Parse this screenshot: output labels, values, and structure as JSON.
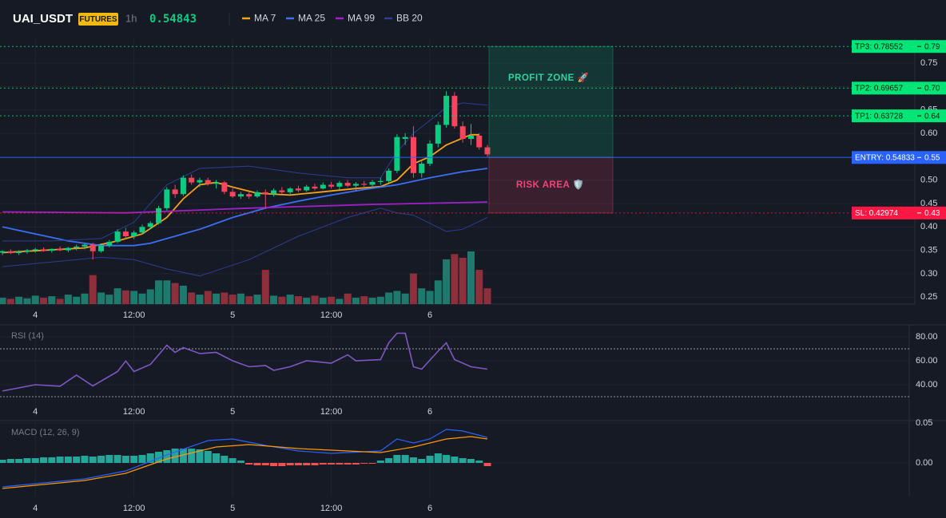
{
  "chart_data": [
    {
      "type": "candlestick",
      "title": "UAI_USDT",
      "badge": "FUTURES",
      "interval": "1h",
      "last_price": 0.54843,
      "xlim": [
        -0.3,
        111
      ],
      "ylim": [
        0.235,
        0.803
      ],
      "xticks": [
        4,
        {
          "value": 16,
          "label": "12:00"
        },
        {
          "value": 28,
          "label": "5"
        },
        {
          "value": 40,
          "label": "12:00"
        },
        {
          "value": 52,
          "label": "6"
        }
      ],
      "yticks": [
        0.25,
        {
          "value": 0.3,
          "label": "0.30"
        },
        0.35,
        {
          "value": 0.4,
          "label": "0.40"
        },
        0.45,
        {
          "value": 0.5,
          "label": "0.50"
        },
        0.55,
        {
          "value": 0.6,
          "label": "0.60"
        },
        0.65,
        {
          "value": 0.7,
          "label": "0.70"
        },
        0.75
      ],
      "up_color": "#0ecb81",
      "down_color": "#f6465d",
      "open": [
        0.345,
        0.348,
        0.344,
        0.347,
        0.35,
        0.352,
        0.349,
        0.353,
        0.35,
        0.355,
        0.358,
        0.362,
        0.348,
        0.36,
        0.368,
        0.39,
        0.38,
        0.388,
        0.4,
        0.408,
        0.44,
        0.48,
        0.47,
        0.505,
        0.495,
        0.5,
        0.492,
        0.495,
        0.475,
        0.465,
        0.47,
        0.465,
        0.474,
        0.47,
        0.478,
        0.474,
        0.482,
        0.478,
        0.486,
        0.482,
        0.49,
        0.486,
        0.494,
        0.488,
        0.492,
        0.49,
        0.496,
        0.498,
        0.52,
        0.588,
        0.592,
        0.515,
        0.535,
        0.578,
        0.618,
        0.68,
        0.615,
        0.588,
        0.595,
        0.57
      ],
      "high": [
        0.35,
        0.352,
        0.35,
        0.353,
        0.355,
        0.356,
        0.354,
        0.358,
        0.357,
        0.362,
        0.365,
        0.366,
        0.362,
        0.372,
        0.395,
        0.398,
        0.392,
        0.405,
        0.412,
        0.445,
        0.485,
        0.49,
        0.51,
        0.512,
        0.505,
        0.505,
        0.5,
        0.498,
        0.482,
        0.475,
        0.474,
        0.478,
        0.48,
        0.482,
        0.485,
        0.485,
        0.488,
        0.49,
        0.492,
        0.495,
        0.496,
        0.498,
        0.5,
        0.496,
        0.498,
        0.5,
        0.505,
        0.525,
        0.598,
        0.6,
        0.615,
        0.54,
        0.585,
        0.625,
        0.69,
        0.688,
        0.625,
        0.62,
        0.6,
        0.575
      ],
      "low": [
        0.34,
        0.342,
        0.34,
        0.343,
        0.345,
        0.347,
        0.345,
        0.348,
        0.346,
        0.35,
        0.352,
        0.33,
        0.345,
        0.356,
        0.365,
        0.375,
        0.374,
        0.384,
        0.395,
        0.405,
        0.435,
        0.462,
        0.466,
        0.49,
        0.485,
        0.488,
        0.482,
        0.47,
        0.462,
        0.46,
        0.46,
        0.462,
        0.44,
        0.465,
        0.47,
        0.47,
        0.474,
        0.475,
        0.478,
        0.48,
        0.482,
        0.48,
        0.485,
        0.478,
        0.486,
        0.487,
        0.49,
        0.494,
        0.515,
        0.575,
        0.505,
        0.505,
        0.53,
        0.57,
        0.612,
        0.61,
        0.58,
        0.575,
        0.565,
        0.55
      ],
      "close": [
        0.348,
        0.344,
        0.347,
        0.35,
        0.352,
        0.349,
        0.353,
        0.35,
        0.355,
        0.358,
        0.362,
        0.348,
        0.36,
        0.368,
        0.39,
        0.38,
        0.388,
        0.4,
        0.408,
        0.44,
        0.48,
        0.47,
        0.505,
        0.495,
        0.5,
        0.492,
        0.495,
        0.475,
        0.465,
        0.47,
        0.465,
        0.474,
        0.47,
        0.478,
        0.474,
        0.482,
        0.478,
        0.486,
        0.482,
        0.49,
        0.486,
        0.494,
        0.488,
        0.492,
        0.49,
        0.496,
        0.498,
        0.52,
        0.592,
        0.592,
        0.515,
        0.535,
        0.578,
        0.618,
        0.68,
        0.615,
        0.588,
        0.595,
        0.57,
        0.555
      ],
      "volume": [
        12,
        10,
        14,
        11,
        16,
        12,
        15,
        10,
        18,
        14,
        20,
        55,
        22,
        18,
        30,
        26,
        25,
        20,
        28,
        45,
        45,
        40,
        35,
        22,
        18,
        25,
        20,
        22,
        18,
        20,
        15,
        18,
        65,
        16,
        14,
        18,
        15,
        12,
        16,
        12,
        14,
        10,
        20,
        12,
        15,
        12,
        14,
        22,
        25,
        20,
        58,
        30,
        25,
        45,
        85,
        95,
        88,
        100,
        65,
        30
      ],
      "series": [
        {
          "name": "MA 7",
          "color": "#f7a21b",
          "x": [
            0,
            5,
            10,
            14,
            17,
            20,
            22,
            24,
            26,
            28,
            31,
            35,
            39,
            43,
            46,
            48,
            50,
            52,
            54,
            56,
            57,
            58
          ],
          "values": [
            0.345,
            0.35,
            0.355,
            0.37,
            0.385,
            0.42,
            0.46,
            0.49,
            0.495,
            0.485,
            0.472,
            0.468,
            0.475,
            0.482,
            0.486,
            0.5,
            0.535,
            0.55,
            0.575,
            0.59,
            0.597,
            0.597
          ]
        },
        {
          "name": "MA 25",
          "color": "#3b6ff5",
          "x": [
            0,
            4,
            8,
            12,
            16,
            18,
            20,
            24,
            28,
            32,
            36,
            40,
            44,
            48,
            52,
            56,
            59
          ],
          "values": [
            0.4,
            0.385,
            0.37,
            0.36,
            0.36,
            0.365,
            0.375,
            0.395,
            0.42,
            0.44,
            0.455,
            0.468,
            0.48,
            0.49,
            0.505,
            0.518,
            0.525
          ]
        },
        {
          "name": "MA 99",
          "color": "#a020c8",
          "x": [
            0,
            15,
            30,
            45,
            59
          ],
          "values": [
            0.432,
            0.43,
            0.44,
            0.448,
            0.453
          ]
        },
        {
          "name": "BB 20",
          "color": "#2a3f8f",
          "x": [
            0,
            6,
            12,
            16,
            20,
            24,
            30,
            36,
            42,
            46,
            48,
            50,
            54,
            56,
            59
          ],
          "values": [
            0.37,
            0.37,
            0.375,
            0.41,
            0.49,
            0.525,
            0.53,
            0.515,
            0.505,
            0.505,
            0.56,
            0.6,
            0.655,
            0.665,
            0.66
          ],
          "lower": [
            0.315,
            0.325,
            0.335,
            0.33,
            0.31,
            0.295,
            0.33,
            0.38,
            0.42,
            0.44,
            0.43,
            0.425,
            0.39,
            0.395,
            0.42
          ]
        }
      ],
      "levels": [
        {
          "label": "TP3: 0.78552",
          "value": 0.78552,
          "axis_label": "0.79",
          "color": "#00e676"
        },
        {
          "label": "TP2: 0.69657",
          "value": 0.69657,
          "axis_label": "0.70",
          "color": "#00e676"
        },
        {
          "label": "TP1: 0.63728",
          "value": 0.63728,
          "axis_label": "0.64",
          "color": "#00e676"
        },
        {
          "label": "ENTRY: 0.54833",
          "value": 0.54833,
          "axis_label": "0.55",
          "color": "#2962ff"
        },
        {
          "label": "SL: 0.42974",
          "value": 0.42974,
          "axis_label": "0.43",
          "color": "#ff1744"
        }
      ],
      "profit_zone_label": "PROFIT ZONE 🚀",
      "risk_zone_label": "RISK AREA 🛡️"
    },
    {
      "type": "line",
      "title": "RSI (14)",
      "xlim": [
        -0.3,
        111
      ],
      "ylim": [
        12,
        90
      ],
      "xticks": [
        4,
        {
          "value": 16,
          "label": "12:00"
        },
        {
          "value": 28,
          "label": "5"
        },
        {
          "value": 40,
          "label": "12:00"
        },
        {
          "value": 52,
          "label": "6"
        }
      ],
      "yticks": [
        {
          "value": 80,
          "label": "80.00"
        },
        {
          "value": 60,
          "label": "60.00"
        },
        {
          "value": 40,
          "label": "40.00"
        }
      ],
      "bands": [
        70,
        30
      ],
      "series": [
        {
          "color": "#7e57c2",
          "x": [
            0,
            4,
            7,
            9,
            11,
            14,
            15,
            16,
            18,
            20,
            21,
            22,
            24,
            26,
            28,
            30,
            32,
            33,
            35,
            37,
            40,
            42,
            43,
            46,
            47,
            48,
            49,
            50,
            51,
            53,
            54,
            55,
            57,
            59
          ],
          "values": [
            34.7,
            40,
            38.7,
            48,
            39,
            51,
            59.8,
            51,
            57,
            73,
            67,
            71,
            66,
            67,
            60,
            55,
            56,
            52,
            55,
            60,
            58,
            65,
            60,
            61,
            75,
            83,
            83,
            55,
            53,
            68,
            75,
            61,
            55,
            53
          ]
        }
      ]
    },
    {
      "type": "macd",
      "title": "MACD (12, 26, 9)",
      "xlim": [
        -0.3,
        111
      ],
      "ylim": [
        -0.042,
        0.052
      ],
      "xticks": [
        4,
        {
          "value": 16,
          "label": "12:00"
        },
        {
          "value": 28,
          "label": "5"
        },
        {
          "value": 40,
          "label": "12:00"
        },
        {
          "value": 52,
          "label": "6"
        }
      ],
      "yticks": [
        0.05,
        {
          "value": 0,
          "label": "0.00"
        }
      ],
      "histogram": [
        0.004,
        0.005,
        0.005,
        0.006,
        0.006,
        0.007,
        0.007,
        0.008,
        0.008,
        0.008,
        0.009,
        0.008,
        0.009,
        0.01,
        0.01,
        0.009,
        0.009,
        0.01,
        0.012,
        0.014,
        0.016,
        0.018,
        0.018,
        0.018,
        0.017,
        0.015,
        0.012,
        0.009,
        0.006,
        0.003,
        -0.002,
        -0.003,
        -0.003,
        -0.004,
        -0.004,
        -0.003,
        -0.003,
        -0.003,
        -0.003,
        -0.002,
        -0.002,
        -0.002,
        -0.002,
        -0.002,
        -0.001,
        -0.001,
        0.003,
        0.006,
        0.01,
        0.01,
        0.007,
        0.005,
        0.009,
        0.012,
        0.01,
        0.008,
        0.006,
        0.005,
        0.003,
        -0.004
      ],
      "up_color": "#26a69a",
      "down_color": "#ef5350",
      "series": [
        {
          "color": "#2962ff",
          "x": [
            0,
            10,
            15,
            20,
            25,
            28,
            32,
            36,
            40,
            46,
            48,
            50,
            52,
            54,
            56,
            59
          ],
          "values": [
            -0.03,
            -0.02,
            -0.01,
            0.01,
            0.028,
            0.03,
            0.022,
            0.015,
            0.012,
            0.015,
            0.03,
            0.025,
            0.03,
            0.042,
            0.04,
            0.032
          ]
        },
        {
          "color": "#ff9800",
          "x": [
            0,
            10,
            15,
            20,
            26,
            30,
            36,
            42,
            46,
            50,
            54,
            57,
            59
          ],
          "values": [
            -0.032,
            -0.022,
            -0.013,
            0.005,
            0.02,
            0.023,
            0.018,
            0.015,
            0.013,
            0.02,
            0.03,
            0.033,
            0.03
          ]
        }
      ]
    }
  ]
}
